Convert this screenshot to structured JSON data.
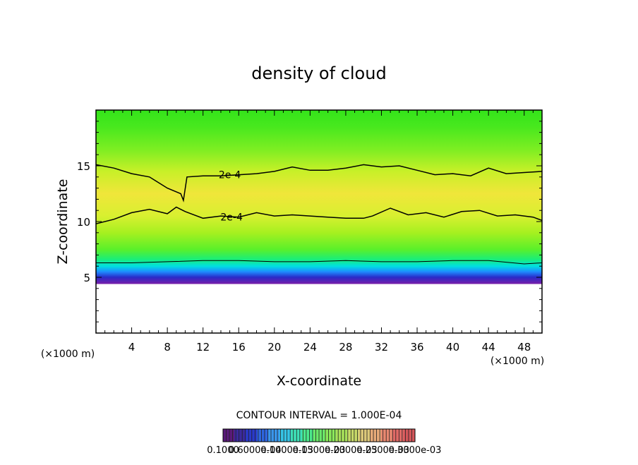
{
  "chart_data": {
    "type": "heatmap",
    "title": "density of cloud",
    "xlabel": "X-coordinate",
    "ylabel": "Z-coordinate",
    "x_unit_label": "(×1000 m)",
    "y_unit_label": "(×1000 m)",
    "xlim": [
      0,
      50
    ],
    "ylim": [
      0,
      20
    ],
    "x_ticks": [
      4,
      8,
      12,
      16,
      20,
      24,
      28,
      32,
      36,
      40,
      44,
      48
    ],
    "y_ticks": [
      5,
      10,
      15
    ],
    "contour_interval_text": "CONTOUR INTERVAL = 1.000E-04",
    "contour_labels": [
      {
        "text": "2e-4",
        "x": 15.0,
        "z": 14.2
      },
      {
        "text": "2e-4",
        "x": 15.2,
        "z": 10.4
      }
    ],
    "contours": [
      {
        "name": "upper",
        "points": [
          [
            0,
            15.1
          ],
          [
            2,
            14.8
          ],
          [
            4,
            14.3
          ],
          [
            6,
            14.0
          ],
          [
            8,
            13.0
          ],
          [
            9.5,
            12.5
          ],
          [
            9.8,
            11.9
          ],
          [
            10.2,
            14.0
          ],
          [
            12,
            14.1
          ],
          [
            14,
            14.1
          ],
          [
            18,
            14.3
          ],
          [
            20,
            14.5
          ],
          [
            22,
            14.9
          ],
          [
            24,
            14.6
          ],
          [
            26,
            14.6
          ],
          [
            28,
            14.8
          ],
          [
            30,
            15.1
          ],
          [
            32,
            14.9
          ],
          [
            34,
            15.0
          ],
          [
            36,
            14.6
          ],
          [
            38,
            14.2
          ],
          [
            40,
            14.3
          ],
          [
            42,
            14.1
          ],
          [
            44,
            14.8
          ],
          [
            46,
            14.3
          ],
          [
            48,
            14.4
          ],
          [
            50,
            14.5
          ]
        ]
      },
      {
        "name": "lower",
        "points": [
          [
            0,
            9.8
          ],
          [
            2,
            10.2
          ],
          [
            4,
            10.8
          ],
          [
            6,
            11.1
          ],
          [
            8,
            10.7
          ],
          [
            9,
            11.3
          ],
          [
            10,
            10.9
          ],
          [
            12,
            10.3
          ],
          [
            14,
            10.5
          ],
          [
            16,
            10.4
          ],
          [
            18,
            10.8
          ],
          [
            20,
            10.5
          ],
          [
            22,
            10.6
          ],
          [
            24,
            10.5
          ],
          [
            26,
            10.4
          ],
          [
            28,
            10.3
          ],
          [
            30,
            10.3
          ],
          [
            31,
            10.5
          ],
          [
            33,
            11.2
          ],
          [
            35,
            10.6
          ],
          [
            37,
            10.8
          ],
          [
            39,
            10.4
          ],
          [
            41,
            10.9
          ],
          [
            43,
            11.0
          ],
          [
            45,
            10.5
          ],
          [
            47,
            10.6
          ],
          [
            49,
            10.4
          ],
          [
            50,
            10.1
          ]
        ]
      },
      {
        "name": "base",
        "points": [
          [
            0,
            6.3
          ],
          [
            4,
            6.3
          ],
          [
            8,
            6.4
          ],
          [
            12,
            6.5
          ],
          [
            16,
            6.5
          ],
          [
            20,
            6.4
          ],
          [
            24,
            6.4
          ],
          [
            28,
            6.5
          ],
          [
            32,
            6.4
          ],
          [
            36,
            6.4
          ],
          [
            40,
            6.5
          ],
          [
            44,
            6.5
          ],
          [
            48,
            6.2
          ],
          [
            50,
            6.3
          ]
        ]
      }
    ],
    "cloud_base_z": 4.4,
    "field_bands": [
      {
        "z": 4.4,
        "color": "#7a1ea8"
      },
      {
        "z": 5.0,
        "color": "#2a2ac8"
      },
      {
        "z": 5.5,
        "color": "#1e8cff"
      },
      {
        "z": 6.0,
        "color": "#00e0e0"
      },
      {
        "z": 6.6,
        "color": "#19ee7a"
      },
      {
        "z": 7.5,
        "color": "#5af02a"
      },
      {
        "z": 9.0,
        "color": "#a6f020"
      },
      {
        "z": 10.5,
        "color": "#d8f030"
      },
      {
        "z": 12.5,
        "color": "#f0e63a"
      },
      {
        "z": 14.5,
        "color": "#c8f028"
      },
      {
        "z": 16.5,
        "color": "#7cee22"
      },
      {
        "z": 18.5,
        "color": "#48e81e"
      },
      {
        "z": 20.0,
        "color": "#34e41a"
      }
    ],
    "colorbar": {
      "min_label": "0.1000",
      "max_label": "0.3000e-03",
      "labels": [
        "0.1000",
        "0.6000e-04",
        "0.1000e-03",
        "0.1500e-03",
        "0.2000e-03",
        "0.2500e-03",
        "0.3000e-03"
      ],
      "colors": [
        "#5a1a7a",
        "#3a2a9e",
        "#2a3aca",
        "#2e66e0",
        "#3a96ec",
        "#36c4e6",
        "#3ee0b8",
        "#4ce88c",
        "#6ae86a",
        "#8ae85a",
        "#a8e05a",
        "#c6d868",
        "#dcc87a",
        "#e6aa78",
        "#e88870",
        "#e06a66",
        "#d4565a"
      ]
    }
  }
}
